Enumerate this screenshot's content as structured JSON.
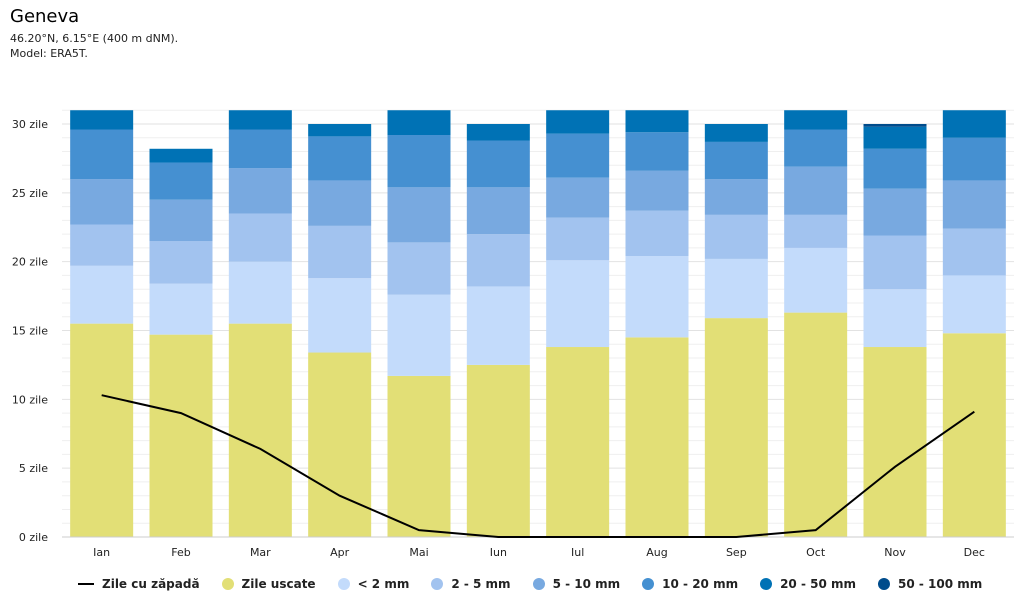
{
  "header": {
    "title": "Geneva",
    "coords": "46.20°N, 6.15°E (400 m dNM).",
    "model": "Model: ERA5T."
  },
  "chart_data": {
    "type": "bar",
    "stacked": true,
    "categories": [
      "Ian",
      "Feb",
      "Mar",
      "Apr",
      "Mai",
      "Iun",
      "Iul",
      "Aug",
      "Sep",
      "Oct",
      "Nov",
      "Dec"
    ],
    "ylim": [
      0,
      31
    ],
    "yticks": [
      0,
      5,
      10,
      15,
      20,
      25,
      30
    ],
    "ytick_labels": [
      "0 zile",
      "5 zile",
      "10 zile",
      "15 zile",
      "20 zile",
      "25 zile",
      "30 zile"
    ],
    "series": [
      {
        "name": "Zile uscate",
        "color": "#e2df76",
        "values": [
          15.5,
          14.7,
          15.5,
          13.4,
          11.7,
          12.5,
          13.8,
          14.5,
          15.9,
          16.3,
          13.8,
          14.8
        ]
      },
      {
        "name": "< 2 mm",
        "color": "#c3dbfb",
        "values": [
          4.2,
          3.7,
          4.5,
          5.4,
          5.9,
          5.7,
          6.3,
          5.9,
          4.3,
          4.7,
          4.2,
          4.2
        ]
      },
      {
        "name": "2 - 5 mm",
        "color": "#a2c3ef",
        "values": [
          3.0,
          3.1,
          3.5,
          3.8,
          3.8,
          3.8,
          3.1,
          3.3,
          3.2,
          2.4,
          3.9,
          3.4
        ]
      },
      {
        "name": "5 - 10 mm",
        "color": "#78a9e0",
        "values": [
          3.3,
          3.0,
          3.3,
          3.3,
          4.0,
          3.4,
          2.9,
          2.9,
          2.6,
          3.5,
          3.4,
          3.5
        ]
      },
      {
        "name": "10 - 20 mm",
        "color": "#4590d1",
        "values": [
          3.6,
          2.7,
          2.8,
          3.2,
          3.8,
          3.4,
          3.2,
          2.8,
          2.7,
          2.7,
          2.9,
          3.1
        ]
      },
      {
        "name": "20 - 50 mm",
        "color": "#0072b5",
        "values": [
          1.4,
          1.0,
          1.4,
          0.9,
          1.8,
          1.2,
          1.7,
          1.6,
          1.3,
          1.4,
          1.6,
          2.0
        ]
      },
      {
        "name": "50 - 100 mm",
        "color": "#004c8c",
        "values": [
          0,
          0,
          0,
          0,
          0,
          0,
          0,
          0,
          0,
          0,
          0.2,
          0
        ]
      }
    ],
    "line": {
      "name": "Zile cu zăpadă",
      "color": "#000000",
      "values": [
        10.3,
        9.0,
        6.4,
        3.0,
        0.5,
        0,
        0,
        0,
        0,
        0.5,
        5.1,
        9.1
      ]
    },
    "legend_position": "bottom"
  }
}
